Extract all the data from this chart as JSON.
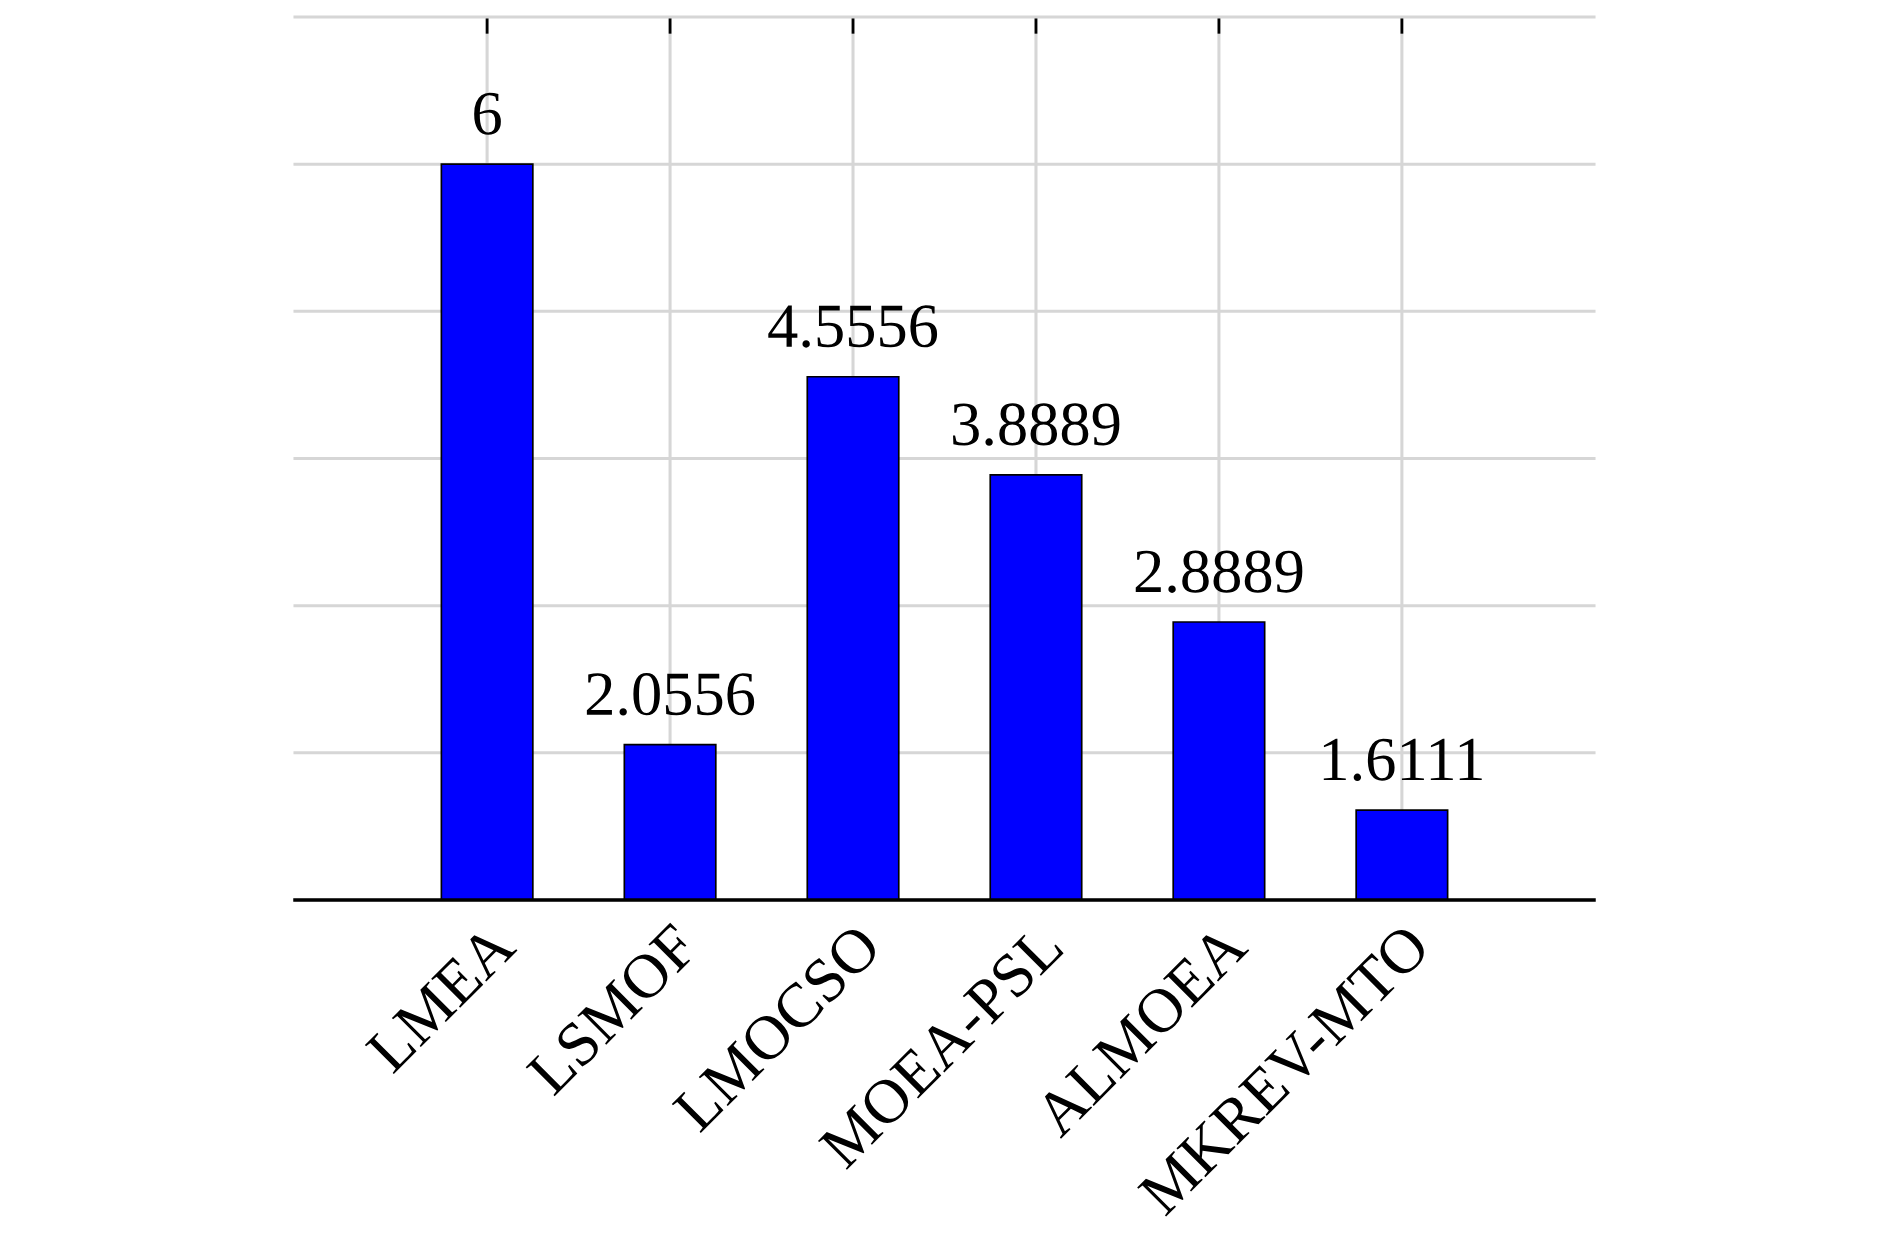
{
  "chart_data": {
    "type": "bar",
    "categories": [
      "LMEA",
      "LSMOF",
      "LMOCSO",
      "MOEA-PSL",
      "ALMOEA",
      "MKREV-MTO"
    ],
    "values": [
      6,
      2.0556,
      4.5556,
      3.8889,
      2.8889,
      1.6111
    ],
    "color": "#0000ff",
    "ylim": [
      1,
      7
    ],
    "yticks": [
      {
        "value": 1,
        "label": null
      },
      {
        "value": 2,
        "label": null
      },
      {
        "value": 3,
        "label": null
      },
      {
        "value": 4,
        "label": null
      },
      {
        "value": 5,
        "label": null
      },
      {
        "value": 6,
        "label": null
      },
      {
        "value": 7,
        "label": null
      }
    ],
    "tick_labels": "x",
    "grid": true,
    "data_labels": true
  }
}
